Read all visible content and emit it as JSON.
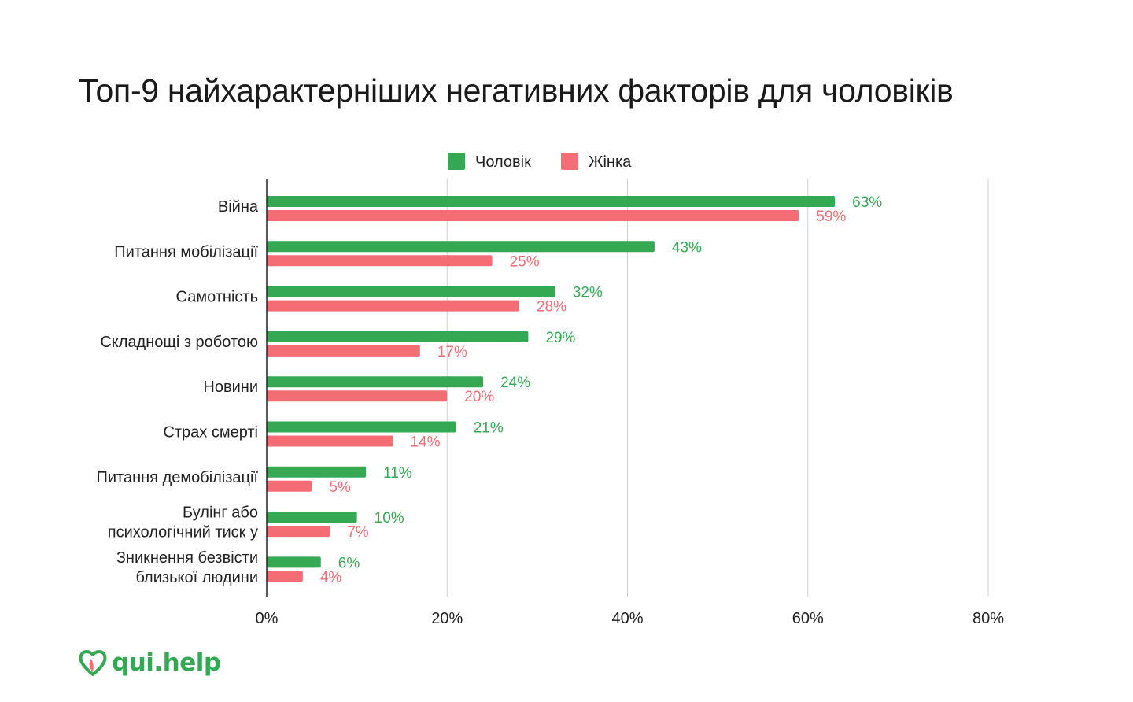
{
  "colors": {
    "men": "#34a853",
    "women": "#f46d75",
    "grid": "#d0d0d0",
    "axis": "#222222",
    "logo": "#34a853"
  },
  "logo": {
    "text": "qui.help",
    "icon": "heart-icon"
  },
  "chart_data": {
    "type": "bar",
    "orientation": "horizontal",
    "title": "Топ-9 найхарактерніших негативних факторів для чоловіків",
    "xlabel": "",
    "ylabel": "",
    "xlim": [
      0,
      80
    ],
    "ticks": [
      0,
      20,
      40,
      60,
      80
    ],
    "tick_labels": [
      "0%",
      "20%",
      "40%",
      "60%",
      "80%"
    ],
    "grid": true,
    "legend_position": "top",
    "categories": [
      [
        "Війна"
      ],
      [
        "Питання мобілізації"
      ],
      [
        "Самотність"
      ],
      [
        "Складнощі з роботою"
      ],
      [
        "Новини"
      ],
      [
        "Страх смерті"
      ],
      [
        "Питання демобілізації"
      ],
      [
        "Булінг або",
        "психологічний тиск у"
      ],
      [
        "Зникнення безвісти",
        "близької людини"
      ]
    ],
    "series": [
      {
        "name": "Чоловік",
        "color": "#34a853",
        "values": [
          63,
          43,
          32,
          29,
          24,
          21,
          11,
          10,
          6
        ],
        "labels": [
          "63%",
          "43%",
          "32%",
          "29%",
          "24%",
          "21%",
          "11%",
          "10%",
          "6%"
        ]
      },
      {
        "name": "Жінка",
        "color": "#f46d75",
        "values": [
          59,
          25,
          28,
          17,
          20,
          14,
          5,
          7,
          4
        ],
        "labels": [
          "59%",
          "25%",
          "28%",
          "17%",
          "20%",
          "14%",
          "5%",
          "7%",
          "4%"
        ]
      }
    ]
  }
}
